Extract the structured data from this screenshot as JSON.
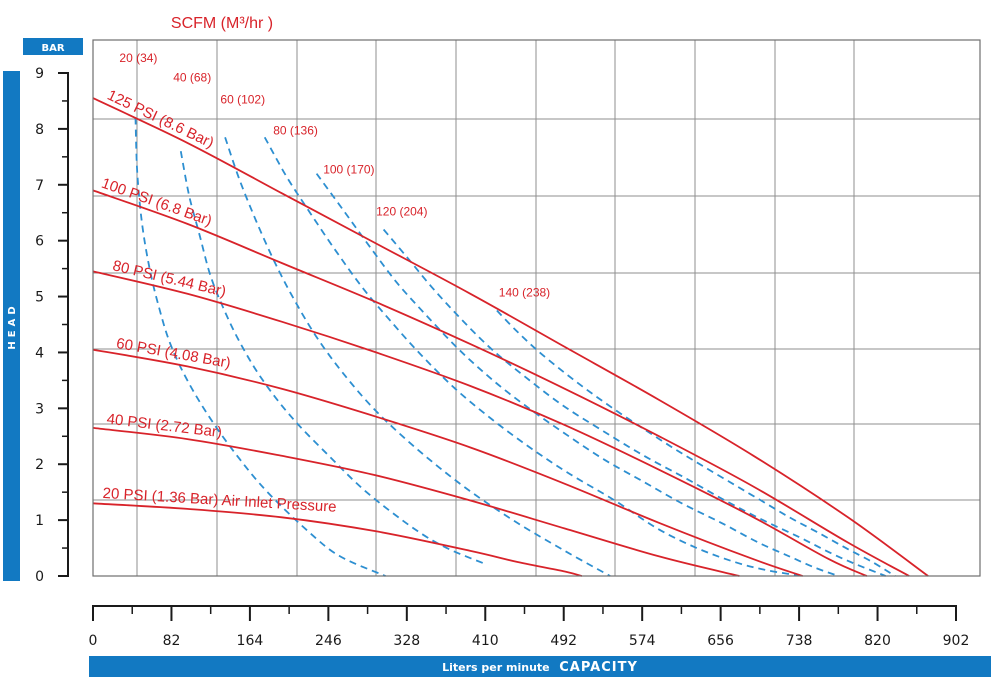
{
  "chart_data": {
    "type": "line",
    "title": "SCFM (M³/hr )",
    "ylabel_unit": "BAR",
    "ylabel": "HEAD",
    "xlabel_prefix": "Liters per minute",
    "xlabel_main": "CAPACITY",
    "xlim": [
      0,
      940
    ],
    "ylim": [
      0,
      9.2
    ],
    "x_ticks": [
      0,
      82,
      164,
      246,
      328,
      410,
      492,
      574,
      656,
      738,
      820,
      902
    ],
    "y_ticks": [
      0,
      1,
      2,
      3,
      4,
      5,
      6,
      7,
      8,
      9
    ],
    "grid": true,
    "colors": {
      "pressure": "#d8232a",
      "air": "#2d8fd1",
      "band": "#1279c2",
      "axis": "#1a1a1a",
      "grid": "#8f8f8f"
    },
    "pressure_series": [
      {
        "name": "125 PSI (8.6 Bar)",
        "x": [
          0,
          100,
          200,
          300,
          400,
          500,
          600,
          700,
          800,
          885
        ],
        "y": [
          8.55,
          7.75,
          6.85,
          5.95,
          5.05,
          4.1,
          3.15,
          2.15,
          1.05,
          0
        ]
      },
      {
        "name": "100 PSI (6.8 Bar)",
        "x": [
          0,
          100,
          200,
          300,
          400,
          500,
          600,
          700,
          800,
          865
        ],
        "y": [
          6.9,
          6.3,
          5.6,
          4.9,
          4.15,
          3.35,
          2.5,
          1.6,
          0.6,
          0
        ]
      },
      {
        "name": "80 PSI (5.44 Bar)",
        "x": [
          0,
          100,
          200,
          300,
          400,
          500,
          600,
          700,
          780,
          820
        ],
        "y": [
          5.45,
          5.05,
          4.55,
          4.0,
          3.4,
          2.7,
          1.9,
          1.05,
          0.3,
          0
        ]
      },
      {
        "name": "60 PSI (4.08 Bar)",
        "x": [
          0,
          100,
          200,
          300,
          400,
          500,
          600,
          700,
          752
        ],
        "y": [
          4.05,
          3.75,
          3.35,
          2.85,
          2.3,
          1.65,
          0.95,
          0.3,
          0
        ]
      },
      {
        "name": "40 PSI (2.72 Bar)",
        "x": [
          0,
          100,
          200,
          300,
          400,
          500,
          600,
          685
        ],
        "y": [
          2.65,
          2.45,
          2.15,
          1.8,
          1.35,
          0.85,
          0.35,
          0
        ]
      },
      {
        "name": "20 PSI (1.36 Bar) Air Inlet Pressure",
        "x": [
          0,
          100,
          200,
          300,
          400,
          450,
          500,
          518
        ],
        "y": [
          1.3,
          1.2,
          1.05,
          0.8,
          0.45,
          0.25,
          0.08,
          0
        ]
      }
    ],
    "air_series": [
      {
        "name": "20 (34)",
        "x": [
          45,
          47,
          52,
          60,
          70,
          82,
          100,
          125,
          155,
          185,
          228,
          262,
          310
        ],
        "y": [
          8.2,
          7.2,
          6.3,
          5.5,
          4.8,
          4.15,
          3.5,
          2.8,
          2.1,
          1.5,
          0.8,
          0.35,
          0
        ]
      },
      {
        "name": "40 (68)",
        "x": [
          93,
          102,
          113,
          124,
          138,
          155,
          178,
          210,
          250,
          290,
          340,
          375,
          415
        ],
        "y": [
          7.6,
          6.8,
          6.1,
          5.4,
          4.8,
          4.2,
          3.55,
          2.85,
          2.15,
          1.5,
          0.85,
          0.5,
          0.22
        ]
      },
      {
        "name": "60 (102)",
        "x": [
          140,
          155,
          173,
          193,
          213,
          236,
          264,
          300,
          345,
          393,
          445,
          500,
          548
        ],
        "y": [
          7.85,
          7.1,
          6.35,
          5.6,
          4.95,
          4.3,
          3.65,
          2.95,
          2.25,
          1.6,
          1.0,
          0.45,
          0
        ]
      },
      {
        "name": "80 (136)",
        "x": [
          182,
          205,
          230,
          258,
          286,
          316,
          348,
          384,
          423,
          463,
          503,
          553,
          598,
          640,
          680,
          715,
          752
        ],
        "y": [
          7.85,
          7.15,
          6.5,
          5.8,
          5.15,
          4.55,
          3.95,
          3.35,
          2.8,
          2.3,
          1.85,
          1.35,
          0.85,
          0.5,
          0.25,
          0.1,
          0
        ]
      },
      {
        "name": "100 (170)",
        "x": [
          237,
          265,
          293,
          322,
          354,
          388,
          424,
          462,
          500,
          540,
          582,
          624,
          666,
          705,
          738,
          765,
          790
        ],
        "y": [
          7.2,
          6.55,
          5.9,
          5.25,
          4.65,
          4.05,
          3.5,
          3.0,
          2.55,
          2.1,
          1.7,
          1.3,
          0.95,
          0.6,
          0.35,
          0.15,
          0
        ]
      },
      {
        "name": "120 (204)",
        "x": [
          308,
          333,
          360,
          390,
          423,
          459,
          498,
          540,
          584,
          628,
          670,
          710,
          748,
          783,
          810,
          840
        ],
        "y": [
          6.2,
          5.7,
          5.15,
          4.6,
          4.05,
          3.55,
          3.05,
          2.6,
          2.15,
          1.75,
          1.35,
          1.0,
          0.7,
          0.4,
          0.2,
          0
        ]
      },
      {
        "name": "140 (238)",
        "x": [
          428,
          448,
          470,
          495,
          522,
          551,
          582,
          614,
          646,
          678,
          708,
          738,
          768,
          798,
          826,
          850
        ],
        "y": [
          4.75,
          4.4,
          4.05,
          3.7,
          3.35,
          3.0,
          2.65,
          2.3,
          1.97,
          1.65,
          1.35,
          1.05,
          0.78,
          0.5,
          0.25,
          0
        ]
      }
    ],
    "air_label_positions": [
      {
        "name": "20 (34)",
        "x": 28,
        "y": 9.2
      },
      {
        "name": "40 (68)",
        "x": 85,
        "y": 8.85
      },
      {
        "name": "60 (102)",
        "x": 135,
        "y": 8.45
      },
      {
        "name": "80 (136)",
        "x": 191,
        "y": 7.9
      },
      {
        "name": "100 (170)",
        "x": 244,
        "y": 7.2
      },
      {
        "name": "120 (204)",
        "x": 300,
        "y": 6.45
      },
      {
        "name": "140 (238)",
        "x": 430,
        "y": 5.0
      }
    ]
  }
}
